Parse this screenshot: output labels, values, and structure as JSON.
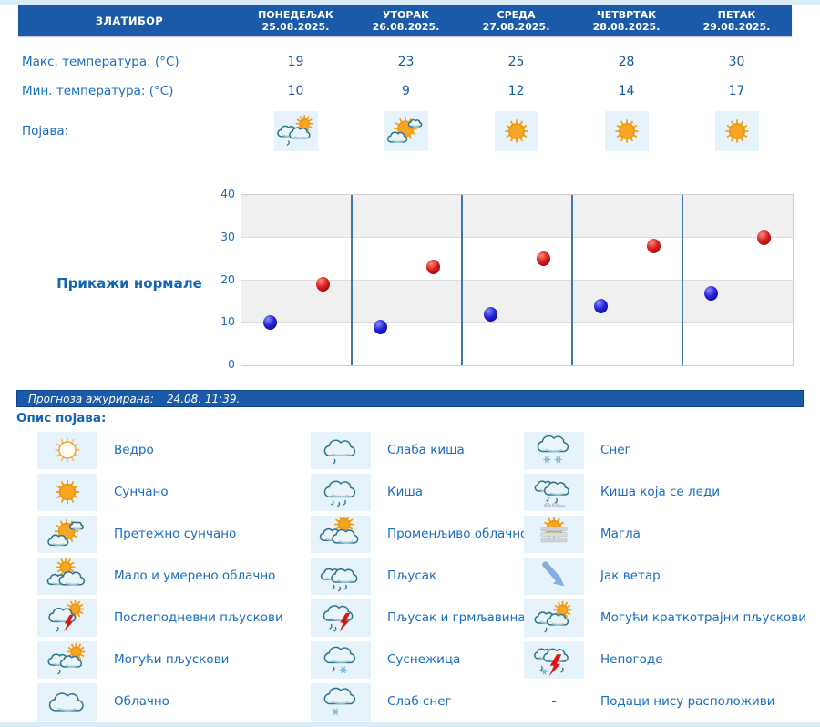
{
  "location": "ЗЛАТИБОР",
  "days": [
    {
      "name": "ПОНЕДЕЉАК",
      "date": "25.08.2025.",
      "max": "19",
      "min": "10",
      "icon": "cloud-sun-drop"
    },
    {
      "name": "УТОРАК",
      "date": "26.08.2025.",
      "max": "23",
      "min": "9",
      "icon": "sun-cloud"
    },
    {
      "name": "СРЕДА",
      "date": "27.08.2025.",
      "max": "25",
      "min": "12",
      "icon": "sun"
    },
    {
      "name": "ЧЕТВРТАК",
      "date": "28.08.2025.",
      "max": "28",
      "min": "14",
      "icon": "sun"
    },
    {
      "name": "ПЕТАК",
      "date": "29.08.2025.",
      "max": "30",
      "min": "17",
      "icon": "sun"
    }
  ],
  "rows": {
    "max_label": "Макс. температура: (°C)",
    "min_label": "Мин. температура: (°C)",
    "phenomena_label": "Појава:"
  },
  "normals_button": "Прикажи нормале",
  "updated_bar": {
    "label": "Прогноза ажурирана:",
    "value": "24.08. 11:39."
  },
  "legend": {
    "title": "Опис појава:",
    "columns": [
      [
        {
          "icon": "sun-outline",
          "label": "Ведро"
        },
        {
          "icon": "sun",
          "label": "Сунчано"
        },
        {
          "icon": "sun-cloud",
          "label": "Претежно сунчано"
        },
        {
          "icon": "clouds-sun",
          "label": "Мало и умерено облачно"
        },
        {
          "icon": "cloud-sun-storm",
          "label": "Послеподневни пљускови"
        },
        {
          "icon": "cloud-sun-drop",
          "label": "Могући пљускови"
        },
        {
          "icon": "cloud",
          "label": "Облачно"
        }
      ],
      [
        {
          "icon": "cloud-drop",
          "label": "Слаба киша"
        },
        {
          "icon": "cloud-rain",
          "label": "Киша"
        },
        {
          "icon": "clouds-sun2",
          "label": "Променљиво облачно"
        },
        {
          "icon": "clouds-rain",
          "label": "Пљусак"
        },
        {
          "icon": "cloud-storm-rain",
          "label": "Пљусак и грмљавина"
        },
        {
          "icon": "cloud-drop-flake",
          "label": "Суснежица"
        },
        {
          "icon": "cloud-flake",
          "label": "Слаб снег"
        }
      ],
      [
        {
          "icon": "cloud-flakes",
          "label": "Снег"
        },
        {
          "icon": "clouds-freezing",
          "label": "Киша која се леди"
        },
        {
          "icon": "fog",
          "label": "Магла"
        },
        {
          "icon": "wind",
          "label": "Јак ветар"
        },
        {
          "icon": "cloud-sun-drop",
          "label": "Могући краткотрајни пљускови"
        },
        {
          "icon": "storm",
          "label": "Непогоде"
        },
        {
          "icon": "dash",
          "label": "Подаци нису расположиви"
        }
      ]
    ]
  },
  "colors": {
    "header_bg": "#1a5aa8",
    "accent_text": "#1a6cc4",
    "value_text": "#17589f",
    "tile_bg": "#e7f3fa",
    "band_gray": "#f0f0f0",
    "separator": "#4077ad",
    "dot_min": "#1a1ad0",
    "dot_max": "#d81f1f"
  },
  "chart_data": {
    "type": "scatter",
    "categories": [
      "ПОНЕДЕЉАК",
      "УТОРАК",
      "СРЕДА",
      "ЧЕТВРТАК",
      "ПЕТАК"
    ],
    "series": [
      {
        "name": "Мин. температура (°C)",
        "color": "#1a1ad0",
        "values": [
          10,
          9,
          12,
          14,
          17
        ]
      },
      {
        "name": "Макс. температура (°C)",
        "color": "#d81f1f",
        "values": [
          19,
          23,
          25,
          28,
          30
        ]
      }
    ],
    "ylim": [
      0,
      40
    ],
    "yticks": [
      0,
      10,
      20,
      30,
      40
    ],
    "grid": "horizontal-bands",
    "legend_position": "none"
  }
}
